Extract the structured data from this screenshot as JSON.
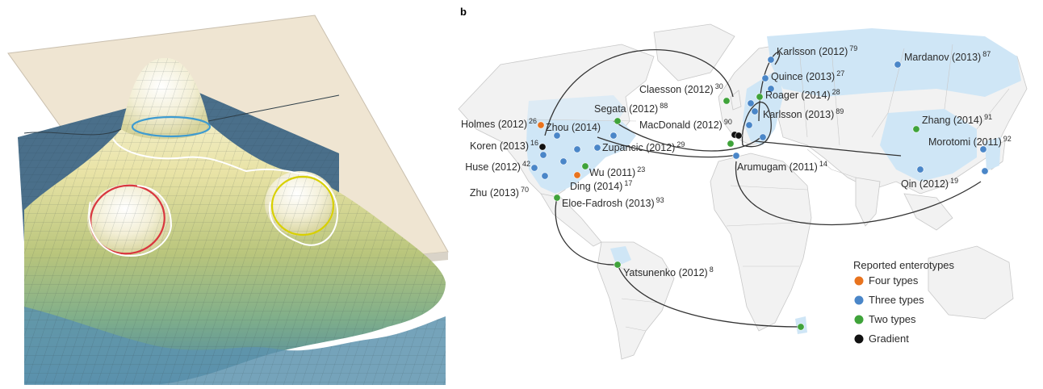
{
  "panel_b_label": "b",
  "legend": {
    "title": "Reported enterotypes",
    "items": [
      {
        "key": "four",
        "label": "Four types",
        "color": "#e8731e"
      },
      {
        "key": "three",
        "label": "Three types",
        "color": "#4a86c8"
      },
      {
        "key": "two",
        "label": "Two types",
        "color": "#3fa33a"
      },
      {
        "key": "gradient",
        "label": "Gradient",
        "color": "#111111"
      }
    ]
  },
  "colors": {
    "land_highlight": "#cfe6f6",
    "land_base": "#f2f2f2",
    "borders": "#c8c8c8",
    "arcs": "#333333",
    "surface_top": "#f7f4dc",
    "surface_bottom": "#4f86a3",
    "plane": "#efe5d2",
    "contour_blue": "#3e9bd0",
    "contour_red": "#d9363e",
    "contour_yellow": "#d8d000",
    "contour_white": "#ffffff"
  },
  "studies": [
    {
      "id": "holmes",
      "name": "Holmes (2012)",
      "ref": "26",
      "type": "four"
    },
    {
      "id": "zhou",
      "name": "Zhou (2014)",
      "ref": "",
      "type": "three"
    },
    {
      "id": "koren",
      "name": "Koren (2013)",
      "ref": "16",
      "type": "gradient"
    },
    {
      "id": "huse",
      "name": "Huse (2012)",
      "ref": "42",
      "type": "three"
    },
    {
      "id": "zhu",
      "name": "Zhu (2013)",
      "ref": "70",
      "type": "three"
    },
    {
      "id": "segata",
      "name": "Segata (2012)",
      "ref": "88",
      "type": "two"
    },
    {
      "id": "zupancic",
      "name": "Zupancic (2012)",
      "ref": "29",
      "type": "three"
    },
    {
      "id": "wu",
      "name": "Wu (2011)",
      "ref": "23",
      "type": "two"
    },
    {
      "id": "ding",
      "name": "Ding (2014)",
      "ref": "17",
      "type": "four"
    },
    {
      "id": "eloe",
      "name": "Eloe-Fadrosh (2013)",
      "ref": "93",
      "type": "two"
    },
    {
      "id": "yatsunenko",
      "name": "Yatsunenko (2012)",
      "ref": "8",
      "type": "two"
    },
    {
      "id": "claesson",
      "name": "Claesson (2012)",
      "ref": "30",
      "type": "two"
    },
    {
      "id": "macdonald",
      "name": "MacDonald (2012)",
      "ref": "90",
      "type": "gradient"
    },
    {
      "id": "karlsson2012",
      "name": "Karlsson (2012)",
      "ref": "79",
      "type": "three"
    },
    {
      "id": "quince",
      "name": "Quince (2013)",
      "ref": "27",
      "type": "three"
    },
    {
      "id": "roager",
      "name": "Roager (2014)",
      "ref": "28",
      "type": "two"
    },
    {
      "id": "karlsson2013",
      "name": "Karlsson (2013)",
      "ref": "89",
      "type": "three"
    },
    {
      "id": "arumugam",
      "name": "Arumugam (2011)",
      "ref": "14",
      "type": "three"
    },
    {
      "id": "mardanov",
      "name": "Mardanov (2013)",
      "ref": "87",
      "type": "three"
    },
    {
      "id": "zhang",
      "name": "Zhang (2014)",
      "ref": "91",
      "type": "two"
    },
    {
      "id": "morotomi",
      "name": "Morotomi (2011)",
      "ref": "92",
      "type": "three"
    },
    {
      "id": "qin",
      "name": "Qin (2012)",
      "ref": "19",
      "type": "three"
    }
  ]
}
